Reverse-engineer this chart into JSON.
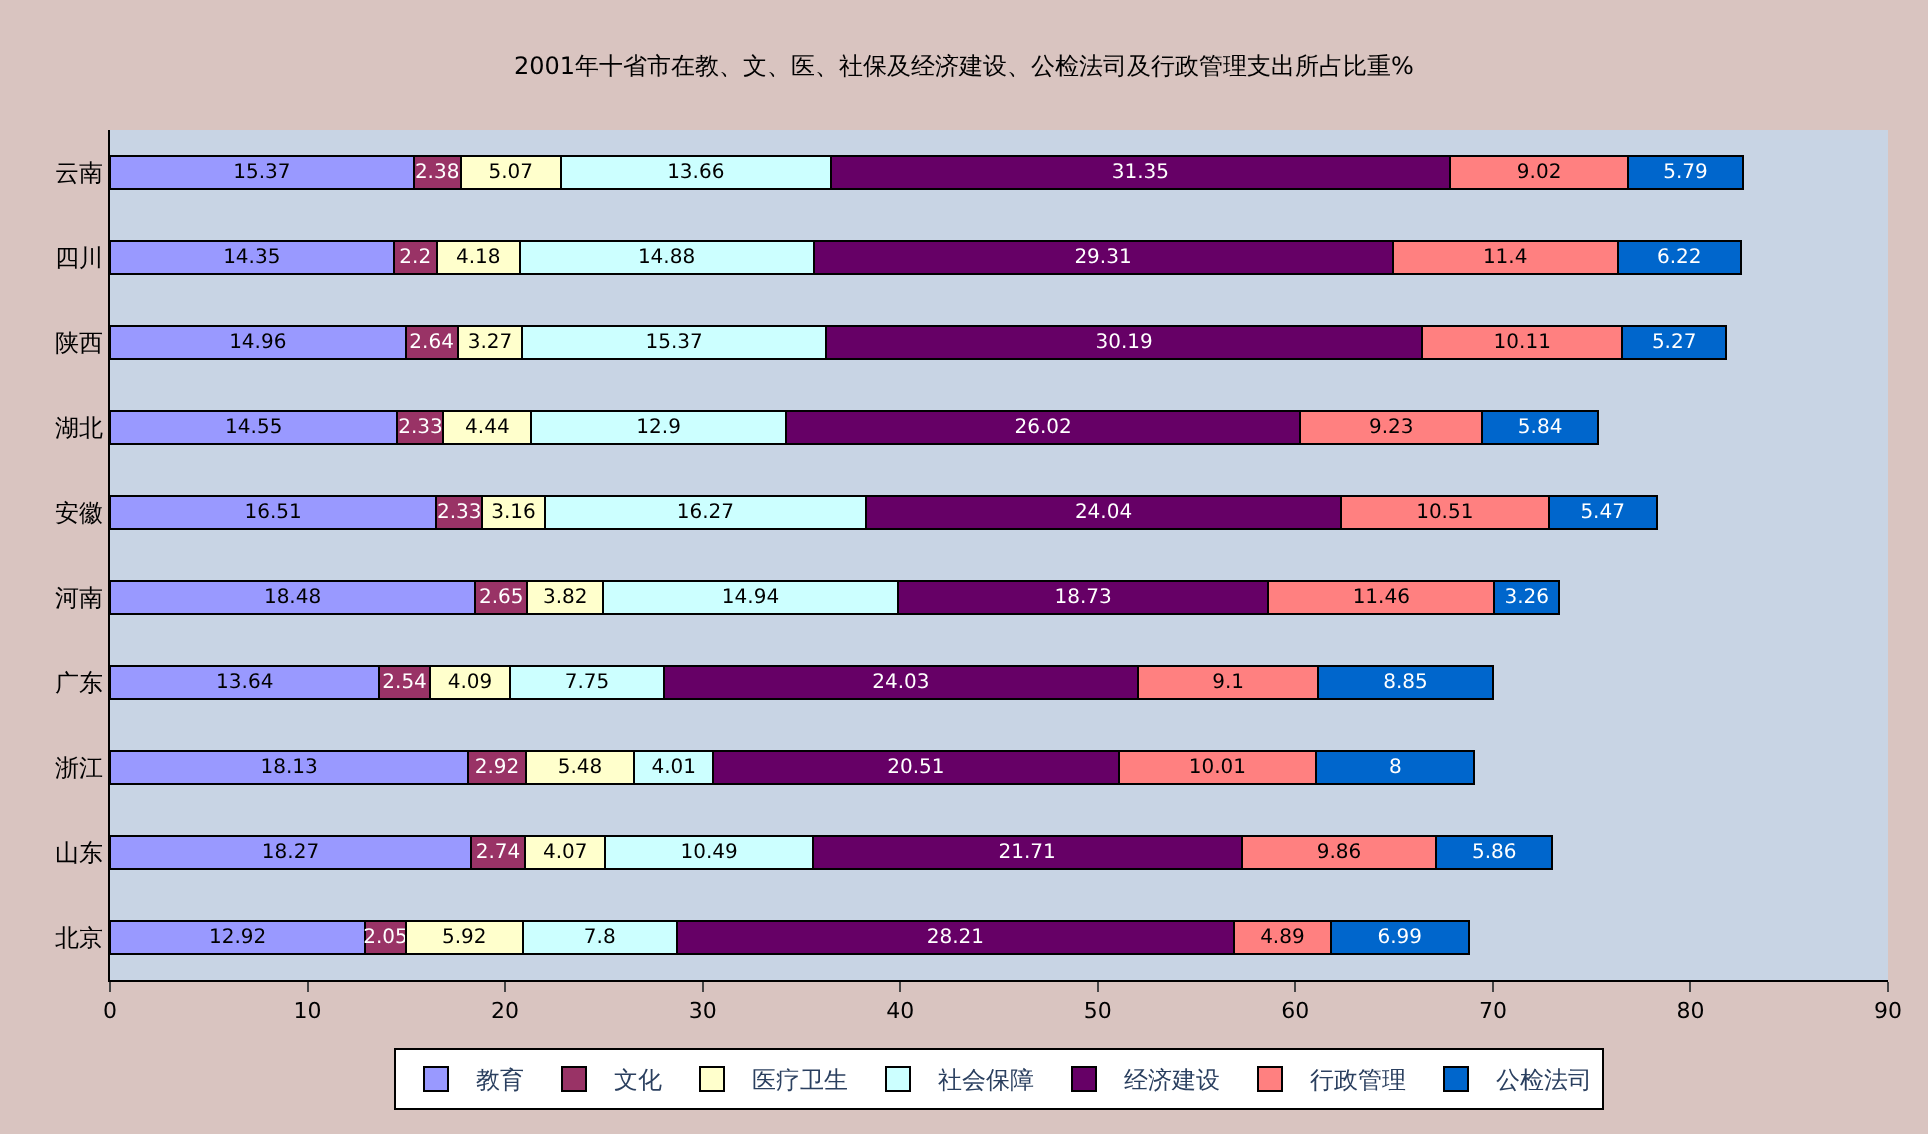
{
  "chart_data": {
    "type": "bar",
    "orientation": "horizontal",
    "stacked": true,
    "data_labels": true,
    "title": "2001年十省市在教、文、医、社保及经济建设、公检法司及行政管理支出所占比重%",
    "categories": [
      "云南",
      "四川",
      "陕西",
      "湖北",
      "安徽",
      "河南",
      "广东",
      "浙江",
      "山东",
      "北京"
    ],
    "series": [
      {
        "name": "教育",
        "color": "#9999ff",
        "values": [
          15.37,
          14.35,
          14.96,
          14.55,
          16.51,
          18.48,
          13.64,
          18.13,
          18.27,
          12.92
        ]
      },
      {
        "name": "文化",
        "color": "#993366",
        "values": [
          2.38,
          2.2,
          2.64,
          2.33,
          2.33,
          2.65,
          2.54,
          2.92,
          2.74,
          2.05
        ]
      },
      {
        "name": "医疗卫生",
        "color": "#ffffcc",
        "values": [
          5.07,
          4.18,
          3.27,
          4.44,
          3.16,
          3.82,
          4.09,
          5.48,
          4.07,
          5.92
        ]
      },
      {
        "name": "社会保障",
        "color": "#ccffff",
        "values": [
          13.66,
          14.88,
          15.37,
          12.9,
          16.27,
          14.94,
          7.75,
          4.01,
          10.49,
          7.8
        ]
      },
      {
        "name": "经济建设",
        "color": "#660066",
        "values": [
          31.35,
          29.31,
          30.19,
          26.02,
          24.04,
          18.73,
          24.03,
          20.51,
          21.71,
          28.21
        ]
      },
      {
        "name": "行政管理",
        "color": "#ff8080",
        "values": [
          9.02,
          11.4,
          10.11,
          9.23,
          10.51,
          11.46,
          9.1,
          10.01,
          9.86,
          4.89
        ]
      },
      {
        "name": "公检法司",
        "color": "#0066cc",
        "values": [
          5.79,
          6.22,
          5.27,
          5.84,
          5.47,
          3.26,
          8.85,
          8,
          5.86,
          6.99
        ]
      }
    ],
    "xlim": [
      0,
      90
    ],
    "xticks": [
      0,
      10,
      20,
      30,
      40,
      50,
      60,
      70,
      80,
      90
    ],
    "grid": false,
    "legend": "bottom"
  }
}
